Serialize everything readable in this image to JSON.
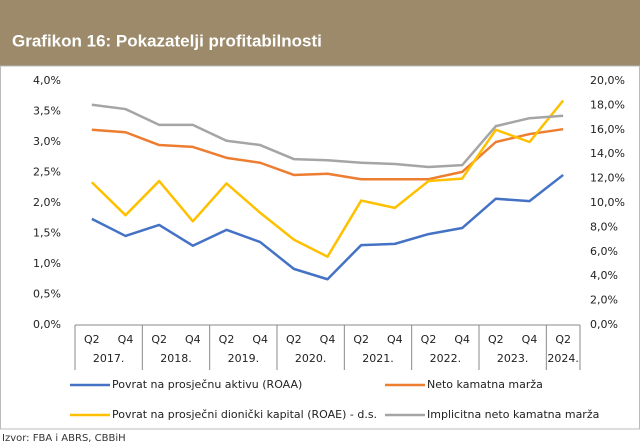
{
  "chart_data": {
    "type": "line",
    "title": "Grafikon 16: Pokazatelji profitabilnosti",
    "source": "Izvor: FBA i ABRS, CBBiH",
    "categories": [
      "Q2",
      "Q4",
      "Q2",
      "Q4",
      "Q2",
      "Q4",
      "Q2",
      "Q4",
      "Q2",
      "Q4",
      "Q2",
      "Q4",
      "Q2",
      "Q4",
      "Q2"
    ],
    "years": [
      "2017.",
      "2018.",
      "2019.",
      "2020.",
      "2021.",
      "2022.",
      "2023.",
      "2024."
    ],
    "series": [
      {
        "name": "Povrat na prosječnu aktivu (ROAA)",
        "color": "#4472c4",
        "values": [
          1.74,
          1.46,
          1.64,
          1.3,
          1.56,
          1.36,
          0.92,
          0.75,
          1.31,
          1.33,
          1.49,
          1.59,
          2.07,
          2.03,
          2.46
        ]
      },
      {
        "name": "Neto kamatna marža",
        "color": "#ed7d31",
        "values": [
          3.2,
          3.16,
          2.95,
          2.92,
          2.74,
          2.66,
          2.46,
          2.48,
          2.39,
          2.39,
          2.39,
          2.51,
          3.0,
          3.13,
          3.21
        ]
      },
      {
        "name": "Povrat na prosječni dionički kapital (ROAE) - d.s.",
        "color": "#ffc000",
        "axis": "y2",
        "values": [
          11.7,
          9.0,
          11.8,
          8.5,
          11.6,
          9.2,
          7.0,
          5.6,
          10.2,
          9.6,
          11.8,
          12.0,
          16.0,
          15.0,
          18.4
        ]
      },
      {
        "name": "Implicitna neto kamatna marža",
        "color": "#a5a5a5",
        "values": [
          3.61,
          3.54,
          3.28,
          3.28,
          3.02,
          2.95,
          2.72,
          2.7,
          2.66,
          2.64,
          2.59,
          2.62,
          3.26,
          3.39,
          3.43
        ]
      }
    ],
    "ylim": [
      0,
      4
    ],
    "yticks": [
      {
        "value": 0,
        "label": "0,0%"
      },
      {
        "value": 0.5,
        "label": "0,5%"
      },
      {
        "value": 1,
        "label": "1,0%"
      },
      {
        "value": 1.5,
        "label": "1,5%"
      },
      {
        "value": 2,
        "label": "2,0%"
      },
      {
        "value": 2.5,
        "label": "2,5%"
      },
      {
        "value": 3,
        "label": "3,0%"
      },
      {
        "value": 3.5,
        "label": "3,5%"
      },
      {
        "value": 4,
        "label": "4,0%"
      }
    ],
    "y2lim": [
      0,
      20
    ],
    "y2ticks": [
      {
        "value": 0,
        "label": "0,0%"
      },
      {
        "value": 2,
        "label": "2,0%"
      },
      {
        "value": 4,
        "label": "4,0%"
      },
      {
        "value": 6,
        "label": "6,0%"
      },
      {
        "value": 8,
        "label": "8,0%"
      },
      {
        "value": 10,
        "label": "10,0%"
      },
      {
        "value": 12,
        "label": "12,0%"
      },
      {
        "value": 14,
        "label": "14,0%"
      },
      {
        "value": 16,
        "label": "16,0%"
      },
      {
        "value": 18,
        "label": "18,0%"
      },
      {
        "value": 20,
        "label": "20,0%"
      }
    ]
  }
}
